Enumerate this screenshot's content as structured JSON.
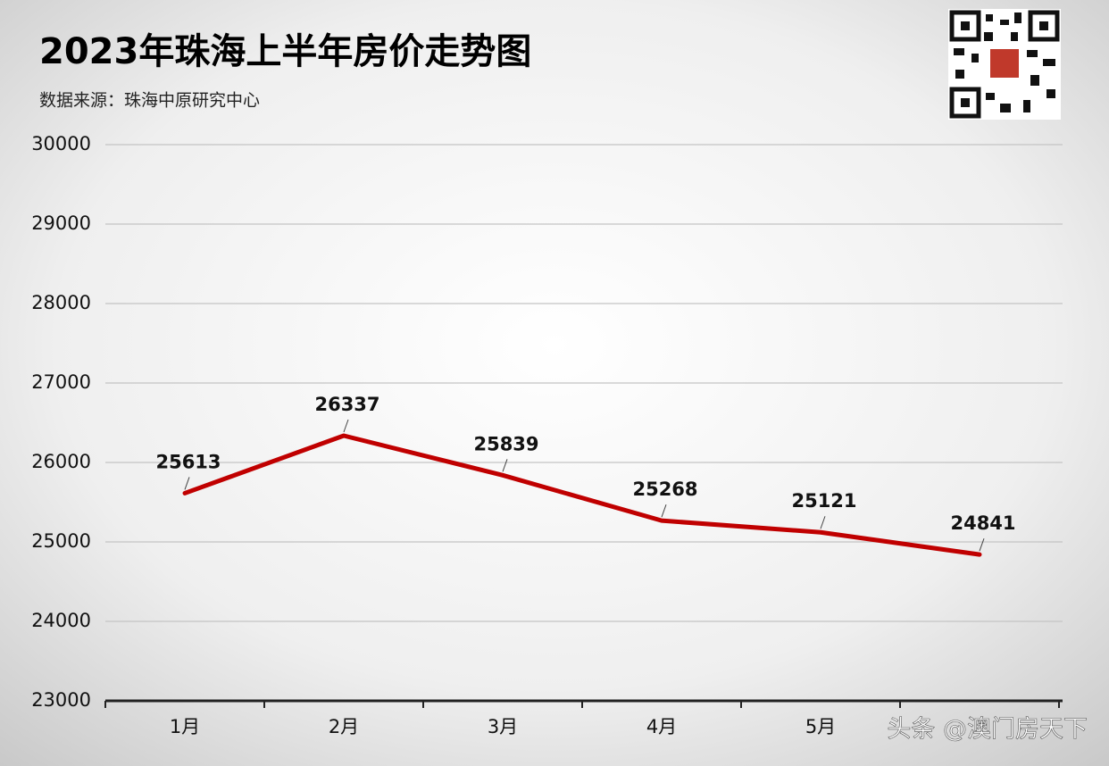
{
  "chart_data": {
    "type": "line",
    "title": "2023年珠海上半年房价走势图",
    "subtitle": "数据来源：珠海中原研究中心",
    "categories": [
      "1月",
      "2月",
      "3月",
      "4月",
      "5月",
      null
    ],
    "values": [
      25613,
      26337,
      25839,
      25268,
      25121,
      24841
    ],
    "color": "#c00000",
    "ylim": [
      23000,
      30000
    ],
    "yticks": [
      23000,
      24000,
      25000,
      26000,
      27000,
      28000,
      29000,
      30000
    ],
    "grid": true
  },
  "watermark": "头条 @澳门房天下"
}
